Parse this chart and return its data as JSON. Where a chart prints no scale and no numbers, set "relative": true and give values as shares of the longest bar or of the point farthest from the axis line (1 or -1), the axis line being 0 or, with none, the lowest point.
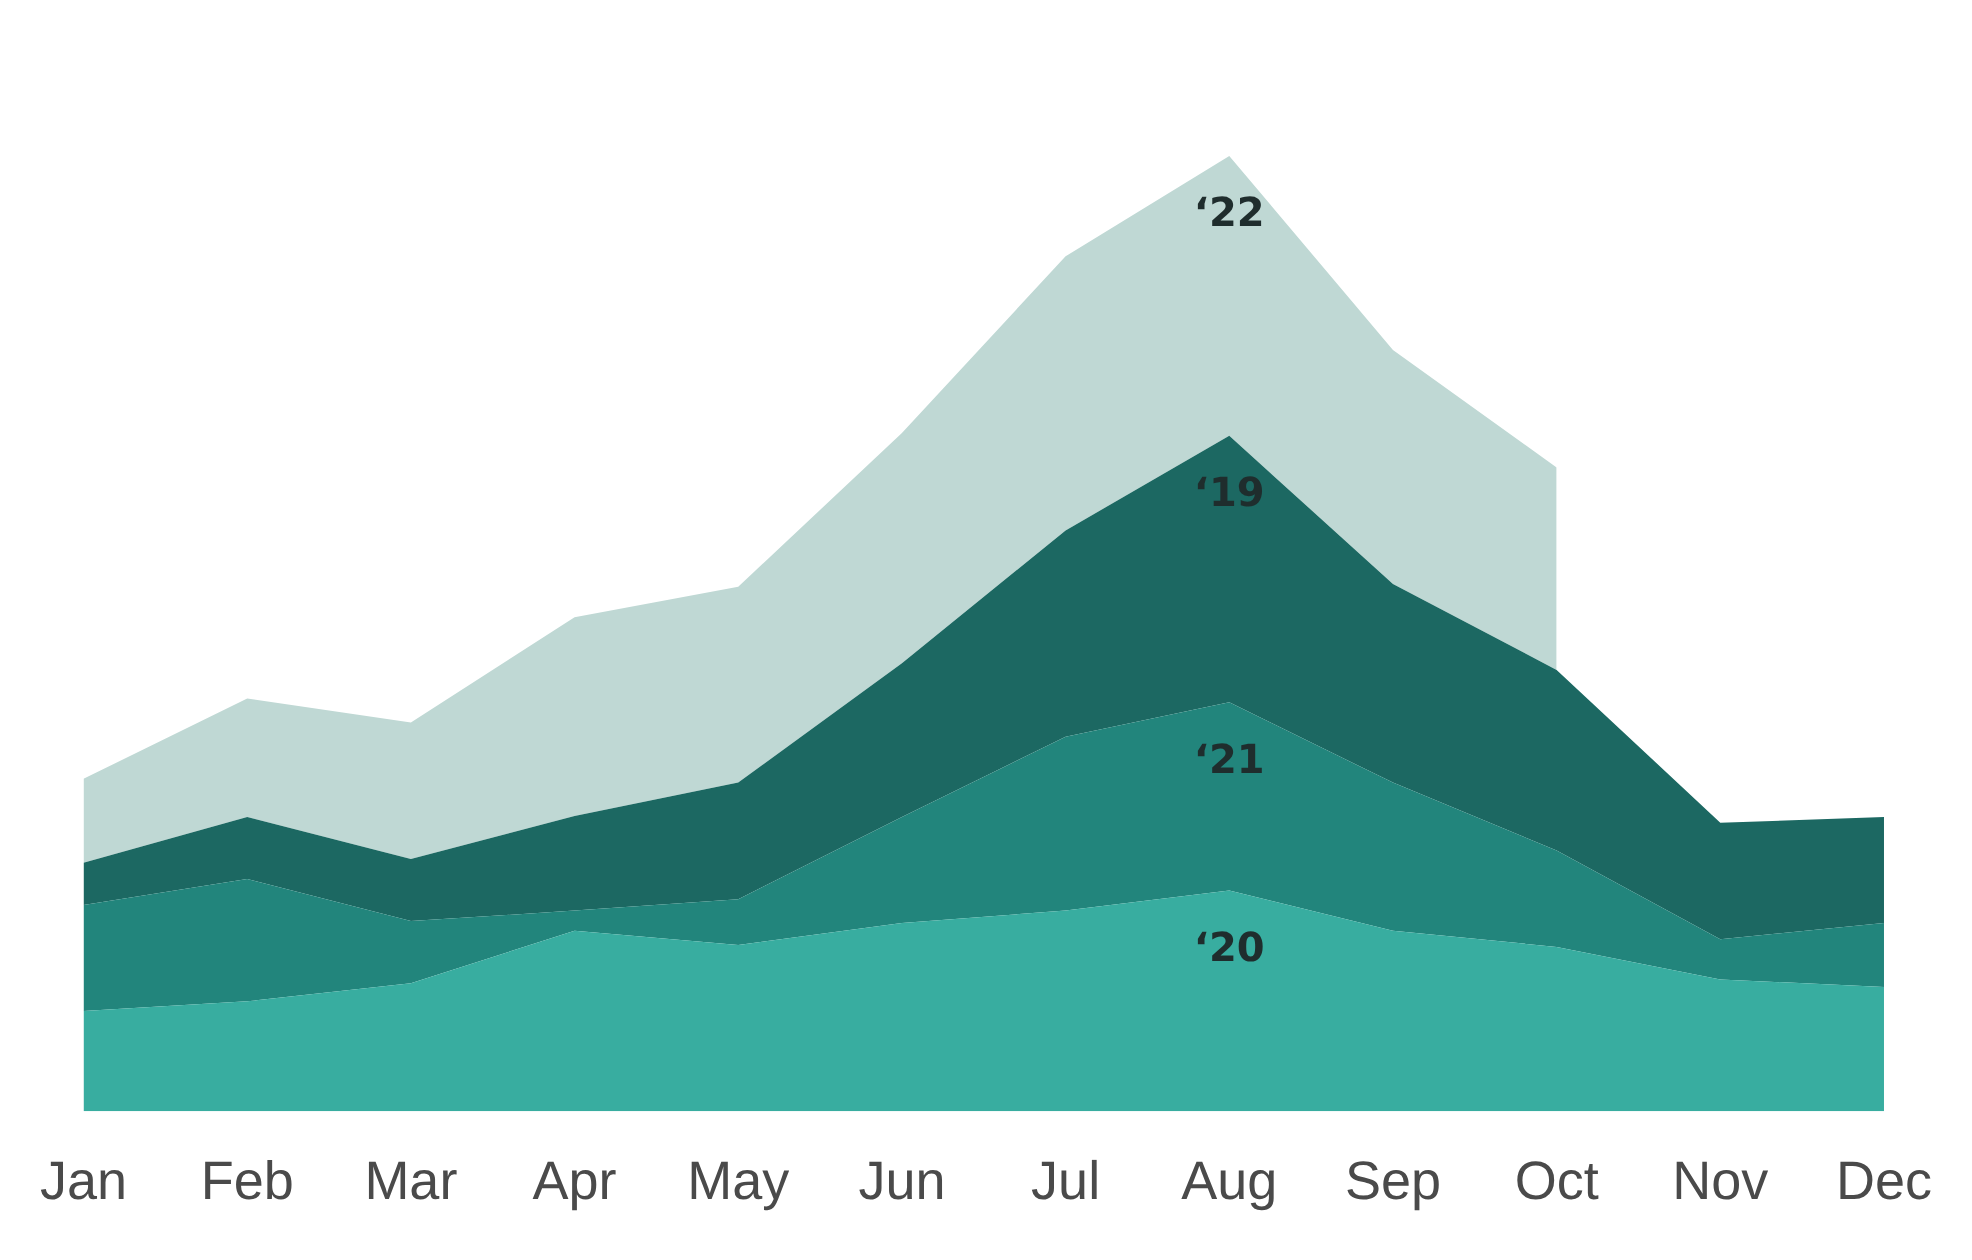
{
  "chart_data": {
    "type": "area",
    "relative": true,
    "stacked": true,
    "legend": false,
    "grid": false,
    "categories": [
      "Jan",
      "Feb",
      "Mar",
      "Apr",
      "May",
      "Jun",
      "Jul",
      "Aug",
      "Sep",
      "Oct",
      "Nov",
      "Dec"
    ],
    "series": [
      {
        "name": "‘20",
        "color": "#38ada0",
        "values": [
          0.105,
          0.115,
          0.134,
          0.189,
          0.174,
          0.197,
          0.21,
          0.231,
          0.189,
          0.172,
          0.138,
          0.13
        ]
      },
      {
        "name": "‘21",
        "color": "#22857c",
        "values": [
          0.111,
          0.128,
          0.065,
          0.021,
          0.048,
          0.111,
          0.182,
          0.197,
          0.155,
          0.101,
          0.042,
          0.067
        ]
      },
      {
        "name": "‘19",
        "color": "#1c6862",
        "values": [
          0.044,
          0.065,
          0.065,
          0.099,
          0.122,
          0.161,
          0.216,
          0.279,
          0.208,
          0.189,
          0.122,
          0.111
        ]
      },
      {
        "name": "‘22",
        "color": "#bfd8d4",
        "values": [
          0.088,
          0.124,
          0.143,
          0.208,
          0.205,
          0.241,
          0.287,
          0.293,
          0.245,
          0.212,
          null,
          null
        ]
      }
    ]
  }
}
